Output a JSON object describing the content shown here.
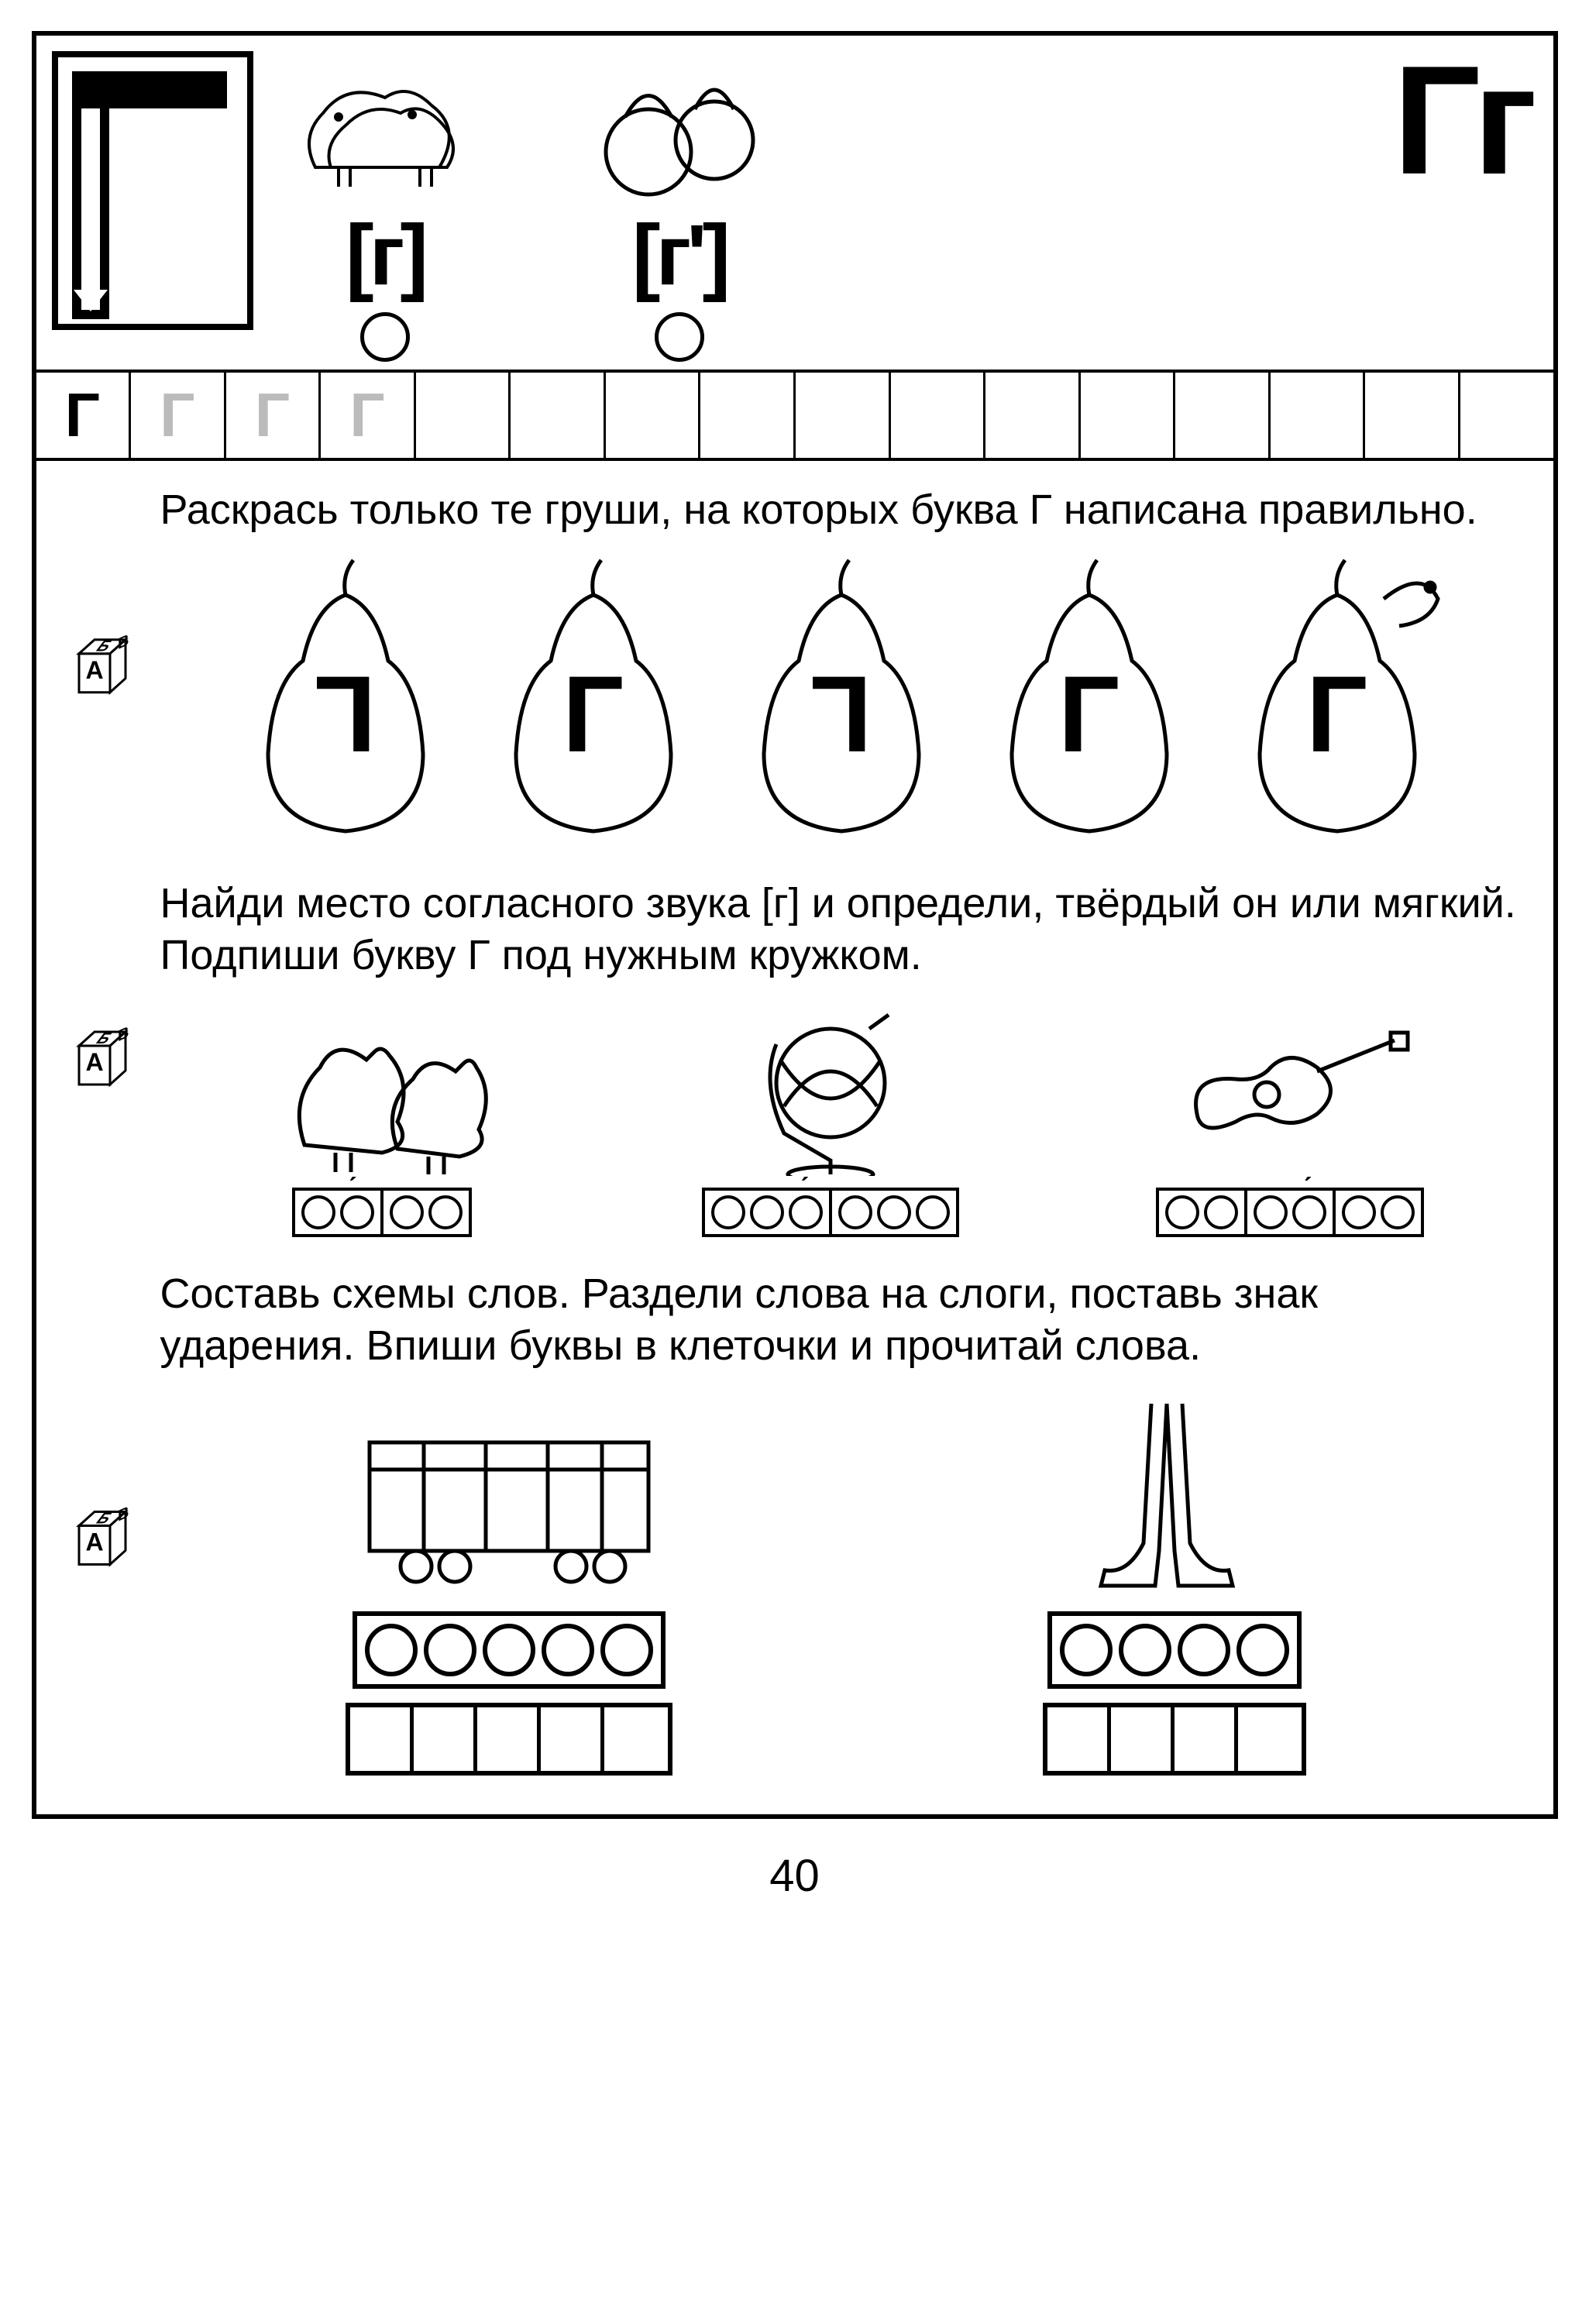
{
  "page_number": "40",
  "header": {
    "phonetic1_label": "[г]",
    "phonetic2_label": "[г']",
    "big_letters": "Гг",
    "pic1_name": "birds-doves",
    "pic2_name": "kettlebells"
  },
  "trace_row": {
    "cells": [
      "Г",
      "Г",
      "Г",
      "Г",
      "",
      "",
      "",
      "",
      "",
      "",
      "",
      "",
      "",
      "",
      "",
      ""
    ],
    "solid_count": 1,
    "dotted_count": 3
  },
  "task1": {
    "text": "Раскрась только те груши, на которых буква Г написана правильно.",
    "pears": [
      {
        "letter": "Г",
        "mirrored": true
      },
      {
        "letter": "Г",
        "mirrored": false
      },
      {
        "letter": "Г",
        "mirrored": true
      },
      {
        "letter": "Г",
        "mirrored": false
      },
      {
        "letter": "Г",
        "mirrored": false,
        "has_worm": true
      }
    ]
  },
  "task2": {
    "text": "Найди место согласного звука [г] и определи, твёрдый он или мягкий. Подпиши букву Г под нужным кружком.",
    "items": [
      {
        "name": "geese",
        "circles": 4,
        "separators": [
          2
        ],
        "stress_index": 1
      },
      {
        "name": "globe",
        "circles": 6,
        "separators": [
          3
        ],
        "stress_index": 2
      },
      {
        "name": "guitar",
        "circles": 6,
        "separators": [
          2,
          4
        ],
        "stress_index": 3
      }
    ]
  },
  "task3": {
    "text": "Составь схемы слов. Раздели слова на слоги, поставь знак ударения. Впиши буквы в клеточки и прочитай слова.",
    "items": [
      {
        "name": "wagon",
        "circles": 5,
        "squares": 5
      },
      {
        "name": "legs",
        "circles": 4,
        "squares": 4
      }
    ]
  },
  "colors": {
    "line": "#000000",
    "bg": "#ffffff",
    "dotted": "#bbbbbb"
  }
}
